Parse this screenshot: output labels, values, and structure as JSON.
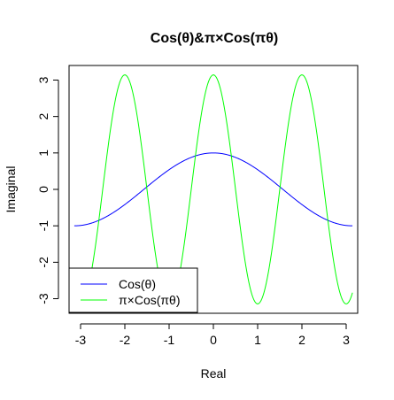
{
  "chart_data": {
    "type": "line",
    "title": "Cos(θ)&π×Cos(πθ)",
    "xlabel": "Real",
    "ylabel": "Imaginal",
    "xlim": [
      -3.26,
      3.26
    ],
    "ylim": [
      -3.4,
      3.4
    ],
    "x_ticks": [
      -3,
      -2,
      -1,
      0,
      1,
      2,
      3
    ],
    "y_ticks": [
      -3,
      -2,
      -1,
      0,
      1,
      2,
      3
    ],
    "x_tick_labels": [
      "-3",
      "-2",
      "-1",
      "0",
      "1",
      "2",
      "3"
    ],
    "y_tick_labels": [
      "-3",
      "-2",
      "-1",
      "0",
      "1",
      "2",
      "3"
    ],
    "grid": false,
    "legend_position": "bottom-left",
    "x_range": [
      -3.14159,
      3.14159
    ],
    "series": [
      {
        "name": "Cos(θ)",
        "color": "#0000ff",
        "formula": "cos(θ)"
      },
      {
        "name": "π×Cos(πθ)",
        "color": "#00ff00",
        "formula": "π×cos(πθ)"
      }
    ]
  }
}
